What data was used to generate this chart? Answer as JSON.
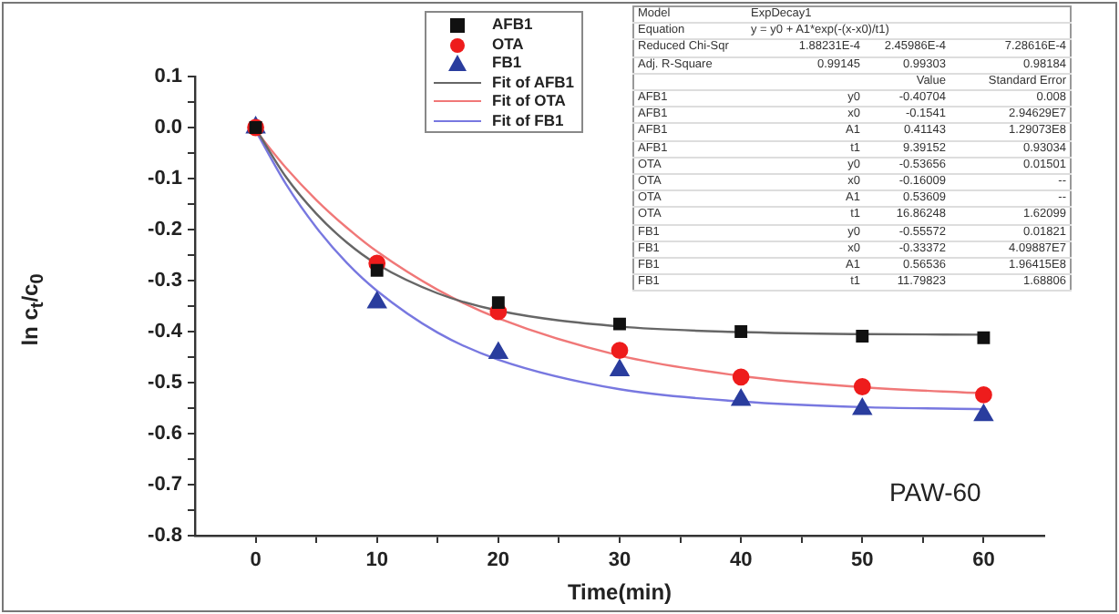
{
  "chart_data": {
    "type": "scatter",
    "xlabel": "Time(min)",
    "ylabel": "ln c$_{t}$/c$_{0}$",
    "xlim": [
      -5,
      65
    ],
    "xticks": [
      0,
      {
        "value": 5,
        "label": null
      },
      10,
      {
        "value": 15,
        "label": null
      },
      20,
      {
        "value": 25,
        "label": null
      },
      30,
      {
        "value": 35,
        "label": null
      },
      40,
      {
        "value": 45,
        "label": null
      },
      50,
      {
        "value": 55,
        "label": null
      },
      60
    ],
    "ylim": [
      -0.8,
      0.1
    ],
    "yticks": [
      0.1,
      {
        "value": 0.05,
        "label": null
      },
      {
        "value": 0,
        "label": "0.0"
      },
      {
        "value": -0.05,
        "label": null
      },
      -0.1,
      {
        "value": -0.15,
        "label": null
      },
      -0.2,
      {
        "value": -0.25,
        "label": null
      },
      -0.3,
      {
        "value": -0.35,
        "label": null
      },
      -0.4,
      {
        "value": -0.45,
        "label": null
      },
      -0.5,
      {
        "value": -0.55,
        "label": null
      },
      -0.6,
      {
        "value": -0.65,
        "label": null
      },
      -0.7,
      {
        "value": -0.75,
        "label": null
      },
      -0.8
    ],
    "grid": false,
    "legend": "top",
    "series": [
      {
        "name": "AFB1",
        "type": "scatter",
        "marker": "square",
        "color": "#111111",
        "x": [
          0,
          10,
          20,
          30,
          40,
          50,
          60
        ],
        "values": [
          0,
          -0.28,
          -0.343,
          -0.385,
          -0.4,
          -0.409,
          -0.412
        ]
      },
      {
        "name": "OTA",
        "type": "scatter",
        "marker": "circle",
        "color": "#ee1c1c",
        "x": [
          0,
          10,
          20,
          30,
          40,
          50,
          60
        ],
        "values": [
          0,
          -0.266,
          -0.361,
          -0.437,
          -0.489,
          -0.508,
          -0.524
        ]
      },
      {
        "name": "FB1",
        "type": "scatter",
        "marker": "triangle",
        "color": "#2a3d9e",
        "x": [
          0,
          10,
          20,
          30,
          40,
          50,
          60
        ],
        "values": [
          0,
          -0.343,
          -0.442,
          -0.476,
          -0.534,
          -0.552,
          -0.564
        ]
      },
      {
        "name": "Fit of AFB1",
        "type": "line",
        "marker": "none",
        "color": "#666666",
        "x": [
          0,
          2.5,
          5,
          7.5,
          10,
          15,
          20,
          30,
          40,
          50,
          60
        ],
        "values": [
          -0.002,
          -0.097,
          -0.169,
          -0.225,
          -0.268,
          -0.325,
          -0.359,
          -0.39,
          -0.401,
          -0.405,
          -0.406
        ]
      },
      {
        "name": "Fit of OTA",
        "type": "line",
        "marker": "none",
        "color": "#f07878",
        "x": [
          0,
          2.5,
          5,
          7.5,
          10,
          15,
          20,
          30,
          40,
          50,
          60
        ],
        "values": [
          -0.006,
          -0.079,
          -0.142,
          -0.196,
          -0.243,
          -0.318,
          -0.374,
          -0.447,
          -0.487,
          -0.509,
          -0.521
        ]
      },
      {
        "name": "Fit of FB1",
        "type": "line",
        "marker": "none",
        "color": "#7878e0",
        "x": [
          0,
          2.5,
          5,
          7.5,
          10,
          15,
          20,
          30,
          40,
          50,
          60
        ],
        "values": [
          -0.006,
          -0.111,
          -0.196,
          -0.265,
          -0.32,
          -0.402,
          -0.455,
          -0.513,
          -0.537,
          -0.548,
          -0.552
        ]
      }
    ],
    "annotations": [
      "Model\tExpDecay1",
      "Equation\ty = y0 + A1*exp(-(x-x0)/t1)",
      "Reduced Chi-Sqr\t1.88231E-4\t2.45986E-4\t7.28616E-4",
      "Adj. R-Square\t0.99145\t0.99303\t0.98184",
      "\t\tValue\tStandard Error",
      "AFB1\ty0\t-0.40704\t0.008",
      "AFB1\tx0\t-0.1541\t2.94629E7",
      "AFB1\tA1\t0.41143\t1.29073E8",
      "AFB1\tt1\t9.39152\t0.93034",
      "OTA\ty0\t-0.53656\t0.01501",
      "OTA\tx0\t-0.16009\t--",
      "OTA\tA1\t0.53609\t--",
      "OTA\tt1\t16.86248\t1.62099",
      "FB1\ty0\t-0.55572\t0.01821",
      "FB1\tx0\t-0.33372\t4.09887E7",
      "FB1\tA1\t0.56536\t1.96415E8",
      "FB1\tt1\t11.79823\t1.68806",
      "PAW-60"
    ]
  }
}
